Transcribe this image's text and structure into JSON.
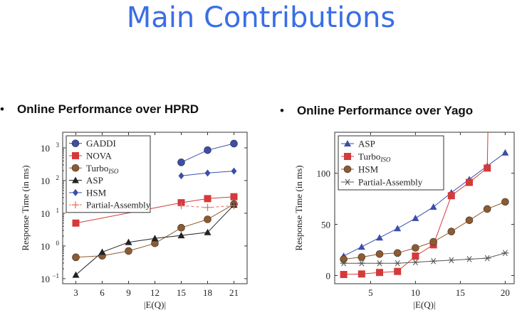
{
  "slide": {
    "title": "Main Contributions",
    "bullets": [
      {
        "text": "Online Performance over HPRD"
      },
      {
        "text": "Online Performance over Yago"
      }
    ]
  },
  "chart_data": [
    {
      "type": "line",
      "xlabel": "|E(Q)|",
      "ylabel": "Response Time (in ms)",
      "yscale": "log",
      "ylim": [
        0.07,
        3000
      ],
      "xlim": [
        1.5,
        22.5
      ],
      "x": [
        3,
        6,
        9,
        12,
        15,
        18,
        21
      ],
      "xticks": [
        "3",
        "6",
        "9",
        "12",
        "15",
        "18",
        "21"
      ],
      "yticks": [
        {
          "base": "10",
          "exp": "3",
          "value": 1000
        },
        {
          "base": "10",
          "exp": "2",
          "value": 100
        },
        {
          "base": "10",
          "exp": "1",
          "value": 10
        },
        {
          "base": "10",
          "exp": "0",
          "value": 1
        },
        {
          "base": "10",
          "exp": "−1",
          "value": 0.1
        }
      ],
      "legend_position": "top-left",
      "series": [
        {
          "name": "GADDI",
          "sub": "",
          "color": "#3b4fa8",
          "marker": "circle",
          "x": [
            15,
            18,
            21
          ],
          "values": [
            360,
            850,
            1350
          ]
        },
        {
          "name": "NOVA",
          "sub": "",
          "color": "#d43a3a",
          "marker": "square",
          "x": [
            3,
            15,
            18,
            21
          ],
          "values": [
            5,
            21,
            28,
            32
          ]
        },
        {
          "name": "Turbo",
          "sub": "ISO",
          "color": "#8e5a2e",
          "marker": "circle",
          "x": [
            3,
            6,
            9,
            12,
            15,
            18,
            21
          ],
          "values": [
            0.45,
            0.5,
            0.7,
            1.2,
            3.6,
            6.5,
            19
          ]
        },
        {
          "name": "ASP",
          "sub": "",
          "color": "#222222",
          "marker": "triangle",
          "x": [
            3,
            6,
            9,
            12,
            15,
            18,
            21
          ],
          "values": [
            0.13,
            0.65,
            1.3,
            1.7,
            2.1,
            2.6,
            18
          ]
        },
        {
          "name": "HSM",
          "sub": "",
          "color": "#3b4fa8",
          "marker": "diamond",
          "x": [
            15,
            18,
            21
          ],
          "values": [
            140,
            170,
            195
          ]
        },
        {
          "name": "Partial-Assembly",
          "sub": "",
          "color": "#e66a6a",
          "marker": "plus",
          "dashed": true,
          "x": [
            15,
            18,
            21
          ],
          "values": [
            17,
            15,
            17
          ]
        }
      ]
    },
    {
      "type": "line",
      "xlabel": "|E(Q)|",
      "ylabel": "Response Time (in ms)",
      "ylim": [
        -8,
        140
      ],
      "xlim": [
        1,
        21
      ],
      "x": [
        2,
        4,
        6,
        8,
        10,
        12,
        14,
        16,
        18,
        20
      ],
      "xticks": [
        "5",
        "10",
        "15",
        "20"
      ],
      "xtick_values": [
        5,
        10,
        15,
        20
      ],
      "yticks": [
        "0",
        "50",
        "100"
      ],
      "ytick_values": [
        0,
        50,
        100
      ],
      "legend_position": "top-left",
      "series": [
        {
          "name": "ASP",
          "sub": "",
          "color": "#3b4fa8",
          "marker": "triangle",
          "x": [
            2,
            4,
            6,
            8,
            10,
            12,
            14,
            16,
            18,
            20
          ],
          "values": [
            19,
            28,
            37,
            46,
            56,
            67,
            81,
            94,
            107,
            120
          ]
        },
        {
          "name": "Turbo",
          "sub": "ISO",
          "color": "#d43a3a",
          "marker": "square",
          "x": [
            2,
            4,
            6,
            8,
            10,
            12,
            14,
            16,
            18
          ],
          "values": [
            1,
            1.5,
            3,
            4,
            19,
            30,
            78,
            91,
            105
          ],
          "extends_to_top": true
        },
        {
          "name": "HSM",
          "sub": "",
          "color": "#8e5a2e",
          "marker": "circle",
          "x": [
            2,
            4,
            6,
            8,
            10,
            12,
            14,
            16,
            18,
            20
          ],
          "values": [
            16,
            18,
            21,
            22,
            27,
            33,
            43,
            54,
            65,
            72
          ]
        },
        {
          "name": "Partial-Assembly",
          "sub": "",
          "color": "#555555",
          "marker": "star",
          "x": [
            2,
            4,
            6,
            8,
            10,
            12,
            14,
            16,
            18,
            20
          ],
          "values": [
            12,
            12,
            12,
            12,
            13,
            14,
            15,
            16,
            17,
            22
          ]
        }
      ]
    }
  ]
}
